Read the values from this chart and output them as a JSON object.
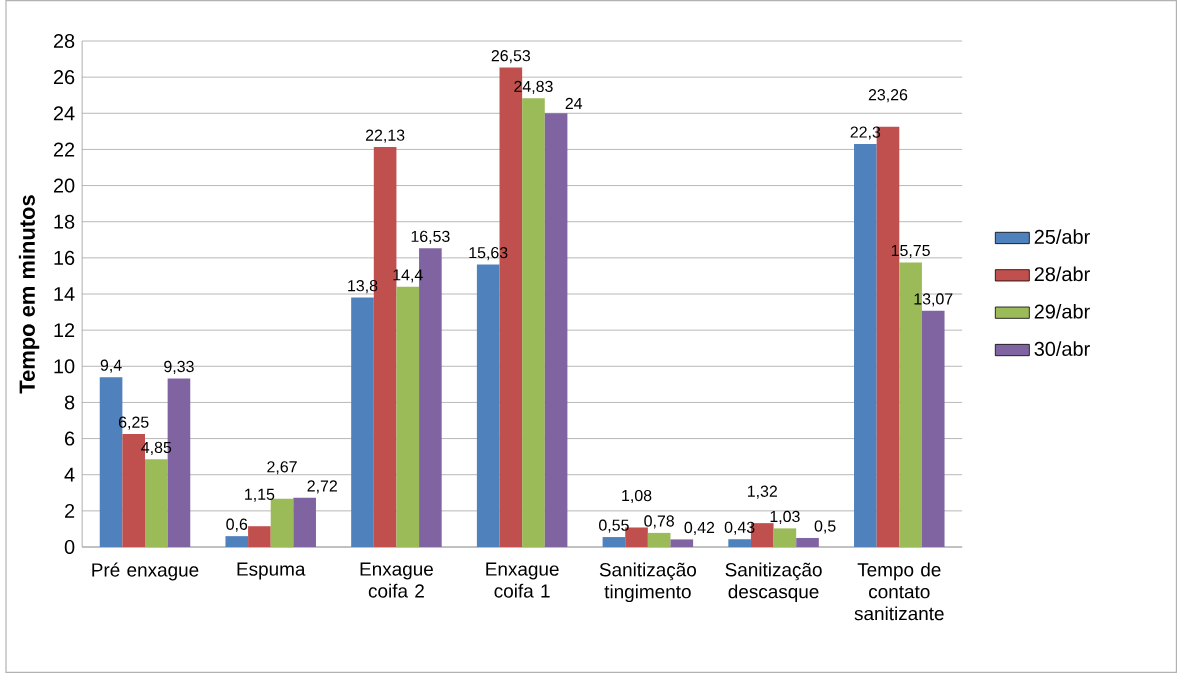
{
  "chart_data": {
    "type": "bar",
    "ylabel": "Tempo em minutos",
    "categories": [
      "Pré enxague",
      "Espuma",
      "Enxague coifa 2",
      "Enxague coifa 1",
      "Sanitização tingimento",
      "Sanitização descasque",
      "Tempo de contato sanitizante"
    ],
    "series": [
      {
        "name": "25/abr",
        "color": "#4f81bd",
        "values": [
          9.4,
          0.6,
          13.8,
          15.63,
          0.55,
          0.43,
          22.3
        ],
        "value_labels": [
          "9,4",
          "0,6",
          "13,8",
          "15,63",
          "0,55",
          "0,43",
          "22,3"
        ]
      },
      {
        "name": "28/abr",
        "color": "#c0504d",
        "values": [
          6.25,
          1.15,
          22.13,
          26.53,
          1.08,
          1.32,
          23.26
        ],
        "value_labels": [
          "6,25",
          "1,15",
          "22,13",
          "26,53",
          "1,08",
          "1,32",
          "23,26"
        ]
      },
      {
        "name": "29/abr",
        "color": "#9bbb59",
        "values": [
          4.85,
          2.67,
          14.4,
          24.83,
          0.78,
          1.03,
          15.75
        ],
        "value_labels": [
          "4,85",
          "2,67",
          "14,4",
          "24,83",
          "0,78",
          "1,03",
          "15,75"
        ]
      },
      {
        "name": "30/abr",
        "color": "#8064a2",
        "values": [
          9.33,
          2.72,
          16.53,
          24,
          0.42,
          0.5,
          13.07
        ],
        "value_labels": [
          "9,33",
          "2,72",
          "16,53",
          "24",
          "0,42",
          "0,5",
          "13,07"
        ]
      }
    ],
    "ylim": [
      0,
      28
    ],
    "yticks": [
      0,
      2,
      4,
      6,
      8,
      10,
      12,
      14,
      16,
      18,
      20,
      22,
      24,
      26,
      28
    ],
    "grid": "y",
    "legend": "right"
  }
}
